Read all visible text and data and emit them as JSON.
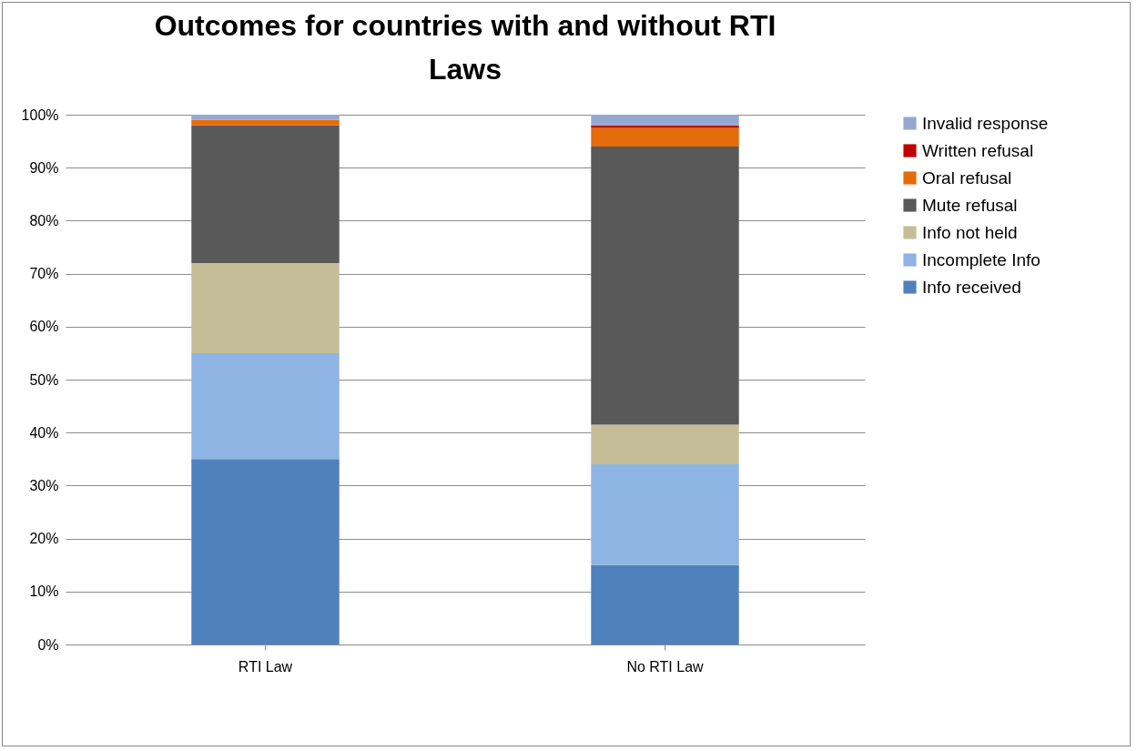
{
  "chart_data": {
    "type": "bar",
    "stacked": true,
    "title": "Outcomes for countries with and without RTI Laws",
    "categories": [
      "RTI Law",
      "No RTI Law"
    ],
    "series": [
      {
        "name": "Info received",
        "color": "#4f81bd",
        "values": [
          35,
          15
        ]
      },
      {
        "name": "Incomplete Info",
        "color": "#8eb4e3",
        "values": [
          20,
          19
        ]
      },
      {
        "name": "Info not held",
        "color": "#c4bd97",
        "values": [
          17,
          7.5
        ]
      },
      {
        "name": "Mute refusal",
        "color": "#595959",
        "values": [
          26,
          52.5
        ]
      },
      {
        "name": "Oral refusal",
        "color": "#e46c0a",
        "values": [
          1,
          3.5
        ]
      },
      {
        "name": "Written refusal",
        "color": "#c00000",
        "values": [
          0,
          0.5
        ]
      },
      {
        "name": "Invalid response",
        "color": "#95a9d0",
        "values": [
          1,
          2
        ]
      }
    ],
    "ylim": [
      0,
      100
    ],
    "yticks": [
      {
        "value": 0,
        "label": "0%"
      },
      {
        "value": 10,
        "label": "10%"
      },
      {
        "value": 20,
        "label": "20%"
      },
      {
        "value": 30,
        "label": "30%"
      },
      {
        "value": 40,
        "label": "40%"
      },
      {
        "value": 50,
        "label": "50%"
      },
      {
        "value": 60,
        "label": "60%"
      },
      {
        "value": 70,
        "label": "70%"
      },
      {
        "value": 80,
        "label": "80%"
      },
      {
        "value": 90,
        "label": "90%"
      },
      {
        "value": 100,
        "label": "100%"
      }
    ],
    "grid": "y",
    "legend": "right"
  }
}
